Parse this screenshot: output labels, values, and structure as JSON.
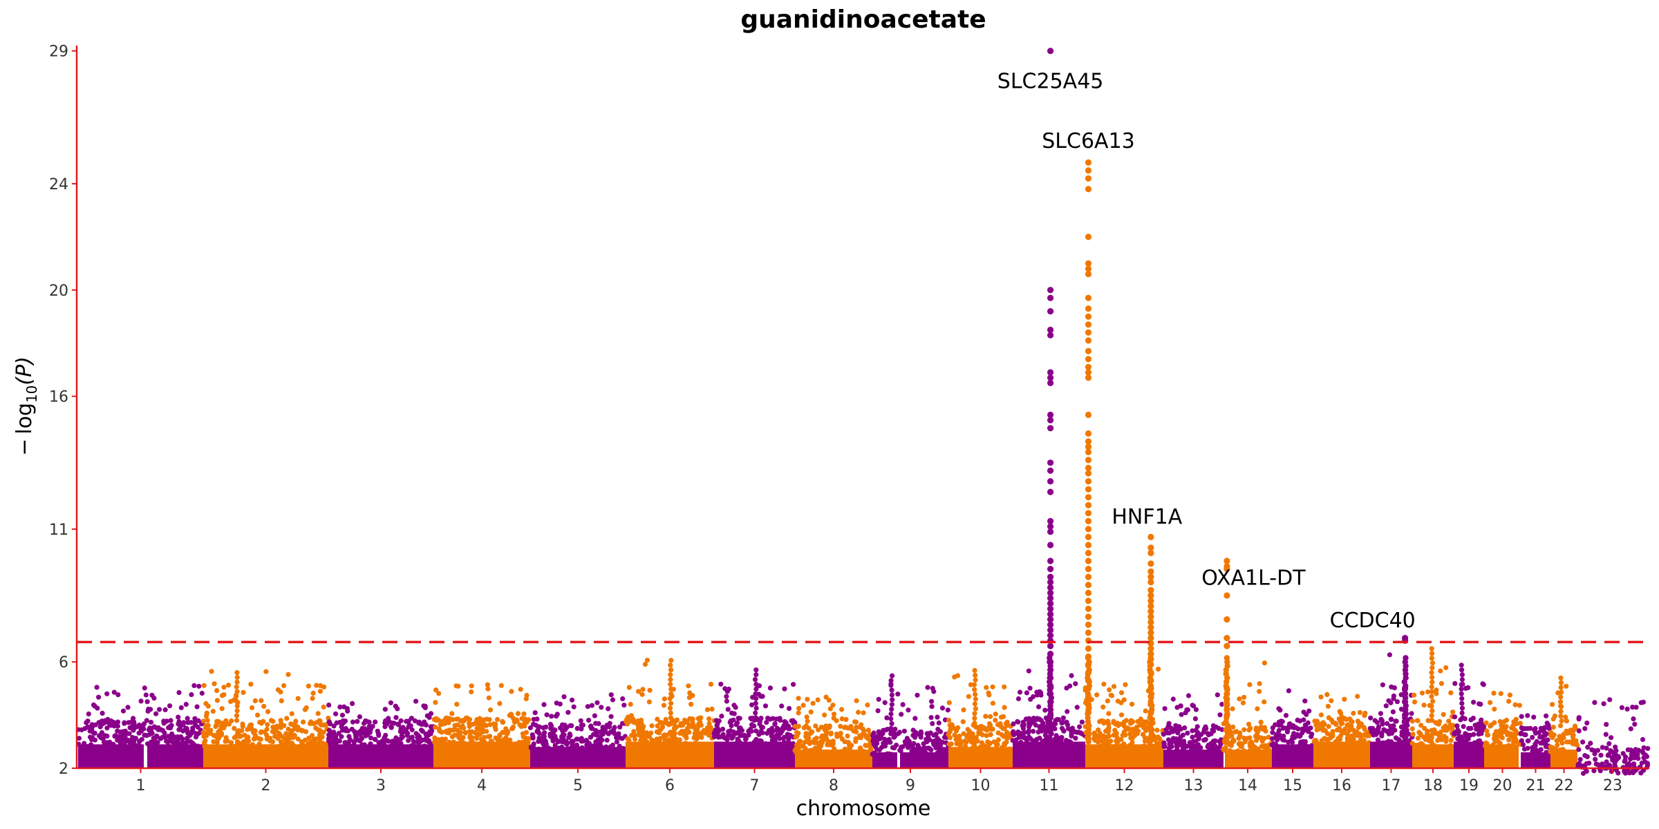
{
  "chart_data": {
    "type": "scatter",
    "title": "guanidinoacetate",
    "xlabel": "chromosome",
    "ylabel": "−log10(P)",
    "ylabel_parts": {
      "minus": "−",
      "log": "log",
      "sub": "10",
      "arg": "(P)"
    },
    "ylim": [
      2,
      29.2
    ],
    "y_ticks": [
      2,
      6,
      11,
      16,
      20,
      24,
      29
    ],
    "significance_threshold": 6.75,
    "colors": {
      "odd": "#8B008B",
      "even": "#F07800",
      "axis": "#E41A1C",
      "threshold": "#E41A1C"
    },
    "grid": false,
    "chromosomes": [
      {
        "label": "1",
        "background_max": 3.8,
        "scattered_max": 5.3
      },
      {
        "label": "2",
        "background_max": 3.8,
        "scattered_max": 5.7
      },
      {
        "label": "3",
        "background_max": 3.8,
        "scattered_max": 4.6
      },
      {
        "label": "4",
        "background_max": 3.9,
        "scattered_max": 5.4
      },
      {
        "label": "5",
        "background_max": 3.7,
        "scattered_max": 4.8
      },
      {
        "label": "6",
        "background_max": 3.9,
        "scattered_max": 6.2
      },
      {
        "label": "7",
        "background_max": 3.9,
        "scattered_max": 5.8
      },
      {
        "label": "8",
        "background_max": 3.6,
        "scattered_max": 4.7
      },
      {
        "label": "9",
        "background_max": 3.5,
        "scattered_max": 5.6
      },
      {
        "label": "10",
        "background_max": 3.7,
        "scattered_max": 5.7
      },
      {
        "label": "11",
        "background_max": 3.9,
        "scattered_max": 29.0
      },
      {
        "label": "12",
        "background_max": 3.8,
        "scattered_max": 24.8
      },
      {
        "label": "13",
        "background_max": 3.6,
        "scattered_max": 4.8
      },
      {
        "label": "14",
        "background_max": 3.6,
        "scattered_max": 9.8
      },
      {
        "label": "15",
        "background_max": 3.8,
        "scattered_max": 5.0
      },
      {
        "label": "16",
        "background_max": 3.9,
        "scattered_max": 4.8
      },
      {
        "label": "17",
        "background_max": 3.9,
        "scattered_max": 6.9
      },
      {
        "label": "18",
        "background_max": 3.8,
        "scattered_max": 6.5
      },
      {
        "label": "19",
        "background_max": 3.9,
        "scattered_max": 5.9
      },
      {
        "label": "20",
        "background_max": 3.8,
        "scattered_max": 5.0
      },
      {
        "label": "21",
        "background_max": 3.5,
        "scattered_max": 4.0
      },
      {
        "label": "22",
        "background_max": 3.6,
        "scattered_max": 5.5
      },
      {
        "label": "23",
        "background_max": 2.8,
        "scattered_max": 4.6
      }
    ],
    "peaks": [
      {
        "gene": "SLC25A45",
        "chromosome": "11",
        "position": 0.52,
        "top": 29.0,
        "values": [
          20.0,
          19.7,
          19.2,
          18.5,
          18.3,
          16.9,
          16.7,
          16.5,
          15.3,
          15.1,
          14.8,
          13.5,
          13.2,
          12.8,
          12.4,
          11.3,
          11.1,
          10.9,
          10.4,
          9.8,
          9.5,
          9.2,
          9.0,
          8.8,
          8.6,
          8.4,
          8.2,
          8.0,
          7.8,
          7.6,
          7.4,
          7.2,
          7.0,
          6.8,
          6.6,
          6.3,
          6.0,
          5.7,
          5.4,
          5.1,
          4.8,
          4.5,
          4.2,
          4.0
        ]
      },
      {
        "gene": "SLC6A13",
        "chromosome": "12",
        "position": 0.04,
        "top": 24.8,
        "values": [
          24.5,
          24.2,
          23.8,
          22.0,
          21.0,
          20.8,
          20.6,
          19.7,
          19.3,
          19.0,
          18.7,
          18.4,
          18.1,
          17.7,
          17.4,
          17.1,
          16.9,
          16.7,
          15.3,
          14.6,
          14.3,
          14.1,
          13.9,
          13.6,
          13.3,
          13.1,
          12.8,
          12.5,
          12.2,
          11.9,
          11.6,
          11.3,
          11.0,
          10.7,
          10.4,
          10.1,
          9.8,
          9.5,
          9.2,
          8.9,
          8.6,
          8.3,
          8.0,
          7.7,
          7.4,
          7.1,
          6.8,
          6.5,
          6.2,
          5.9,
          5.6,
          5.3,
          5.0,
          4.7,
          4.4,
          4.1
        ]
      },
      {
        "gene": "HNF1A",
        "chromosome": "12",
        "position": 0.84,
        "top": 10.7,
        "values": [
          10.3,
          10.1,
          9.7,
          9.4,
          9.2,
          9.0,
          8.7,
          8.5,
          8.3,
          8.1,
          7.9,
          7.7,
          7.5,
          7.3,
          7.1,
          6.9,
          6.7,
          6.5,
          6.3,
          6.1,
          5.9,
          5.6,
          5.3,
          5.0,
          4.7,
          4.4,
          4.1
        ]
      },
      {
        "gene": "OXA1L-DT",
        "chromosome": "14",
        "position": 0.07,
        "top": 9.8,
        "values": [
          9.6,
          9.5,
          8.5,
          7.6,
          6.9,
          6.6,
          5.0,
          4.8,
          4.6,
          4.4,
          4.2,
          4.0
        ]
      },
      {
        "gene": "CCDC40",
        "chromosome": "17",
        "position": 0.83,
        "top": 6.9,
        "values": [
          6.8,
          5.0,
          4.8,
          4.5,
          4.2,
          4.0
        ]
      }
    ],
    "peak_labels": [
      {
        "text": "SLC25A45",
        "chromosome": "11",
        "position": 0.52,
        "y": 27.6
      },
      {
        "text": "SLC6A13",
        "chromosome": "12",
        "position": 0.04,
        "y": 25.35
      },
      {
        "text": "HNF1A",
        "chromosome": "12",
        "position": 0.79,
        "y": 11.2
      },
      {
        "text": "OXA1L-DT",
        "chromosome": "14",
        "position": 0.62,
        "y": 8.9
      },
      {
        "text": "CCDC40",
        "chromosome": "17",
        "position": 0.06,
        "y": 7.3
      }
    ]
  }
}
